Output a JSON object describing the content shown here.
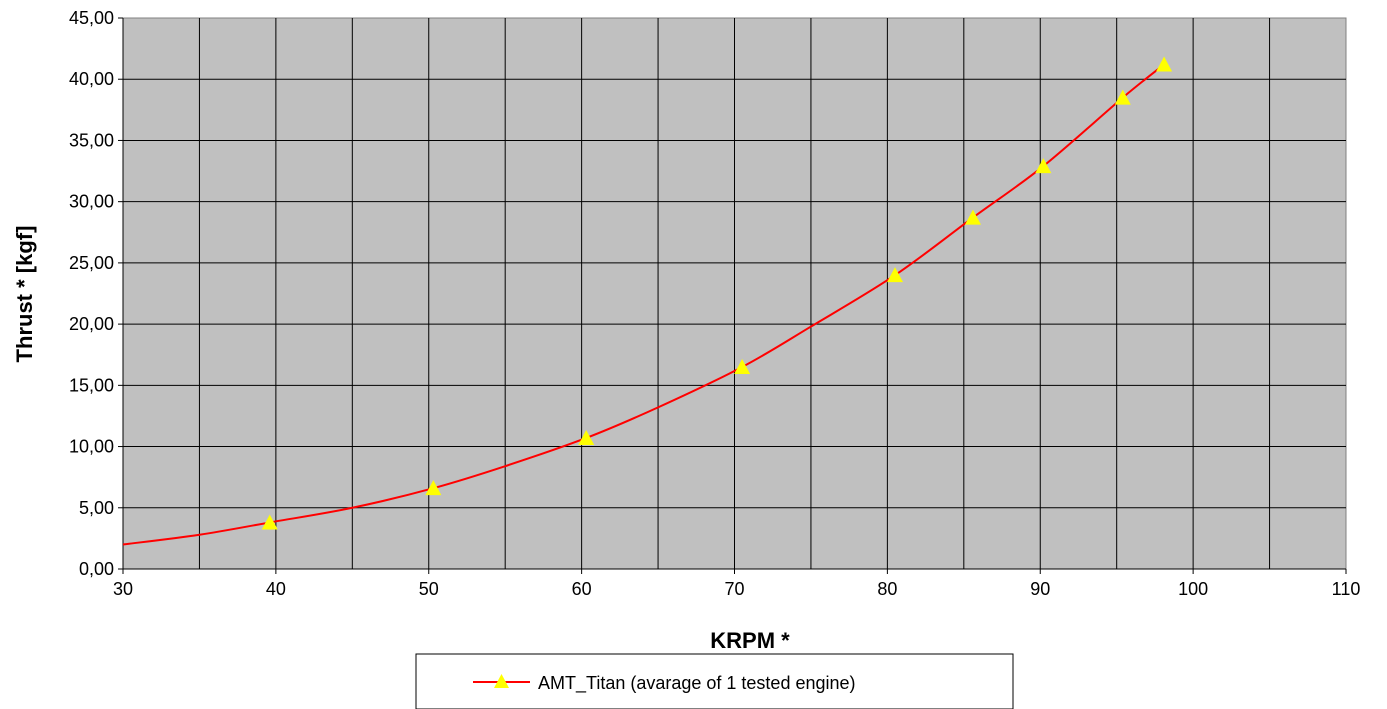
{
  "chart_data": {
    "type": "line",
    "title": "",
    "xlabel": "KRPM *",
    "ylabel": "Thrust * [kgf]",
    "xlim": [
      30,
      110
    ],
    "ylim": [
      0,
      45
    ],
    "x_ticks": [
      "30",
      "40",
      "50",
      "60",
      "70",
      "80",
      "90",
      "100",
      "110"
    ],
    "y_ticks": [
      "0,00",
      "5,00",
      "10,00",
      "15,00",
      "20,00",
      "25,00",
      "30,00",
      "35,00",
      "40,00",
      "45,00"
    ],
    "grid": true,
    "plot_background": "#c0c0c0",
    "legend_position": "bottom-center",
    "series": [
      {
        "name": "AMT_Titan  (avarage of 1 tested engine)",
        "color": "#ff0000",
        "marker": "triangle",
        "marker_color": "#ffff00",
        "points": [
          {
            "x": 39.6,
            "y": 3.8
          },
          {
            "x": 50.3,
            "y": 6.6
          },
          {
            "x": 60.3,
            "y": 10.7
          },
          {
            "x": 70.5,
            "y": 16.5
          },
          {
            "x": 80.5,
            "y": 24.0
          },
          {
            "x": 85.6,
            "y": 28.7
          },
          {
            "x": 90.2,
            "y": 32.9
          },
          {
            "x": 95.4,
            "y": 38.5
          },
          {
            "x": 98.1,
            "y": 41.2
          }
        ],
        "curve": [
          {
            "x": 30,
            "y": 2.0
          },
          {
            "x": 35,
            "y": 2.8
          },
          {
            "x": 39.6,
            "y": 3.8
          },
          {
            "x": 45,
            "y": 5.0
          },
          {
            "x": 50.3,
            "y": 6.6
          },
          {
            "x": 55,
            "y": 8.4
          },
          {
            "x": 60.3,
            "y": 10.7
          },
          {
            "x": 65,
            "y": 13.2
          },
          {
            "x": 70.5,
            "y": 16.5
          },
          {
            "x": 75,
            "y": 19.8
          },
          {
            "x": 80.5,
            "y": 24.0
          },
          {
            "x": 85.6,
            "y": 28.7
          },
          {
            "x": 90.2,
            "y": 32.9
          },
          {
            "x": 95.4,
            "y": 38.5
          },
          {
            "x": 98.1,
            "y": 41.2
          }
        ]
      }
    ]
  }
}
